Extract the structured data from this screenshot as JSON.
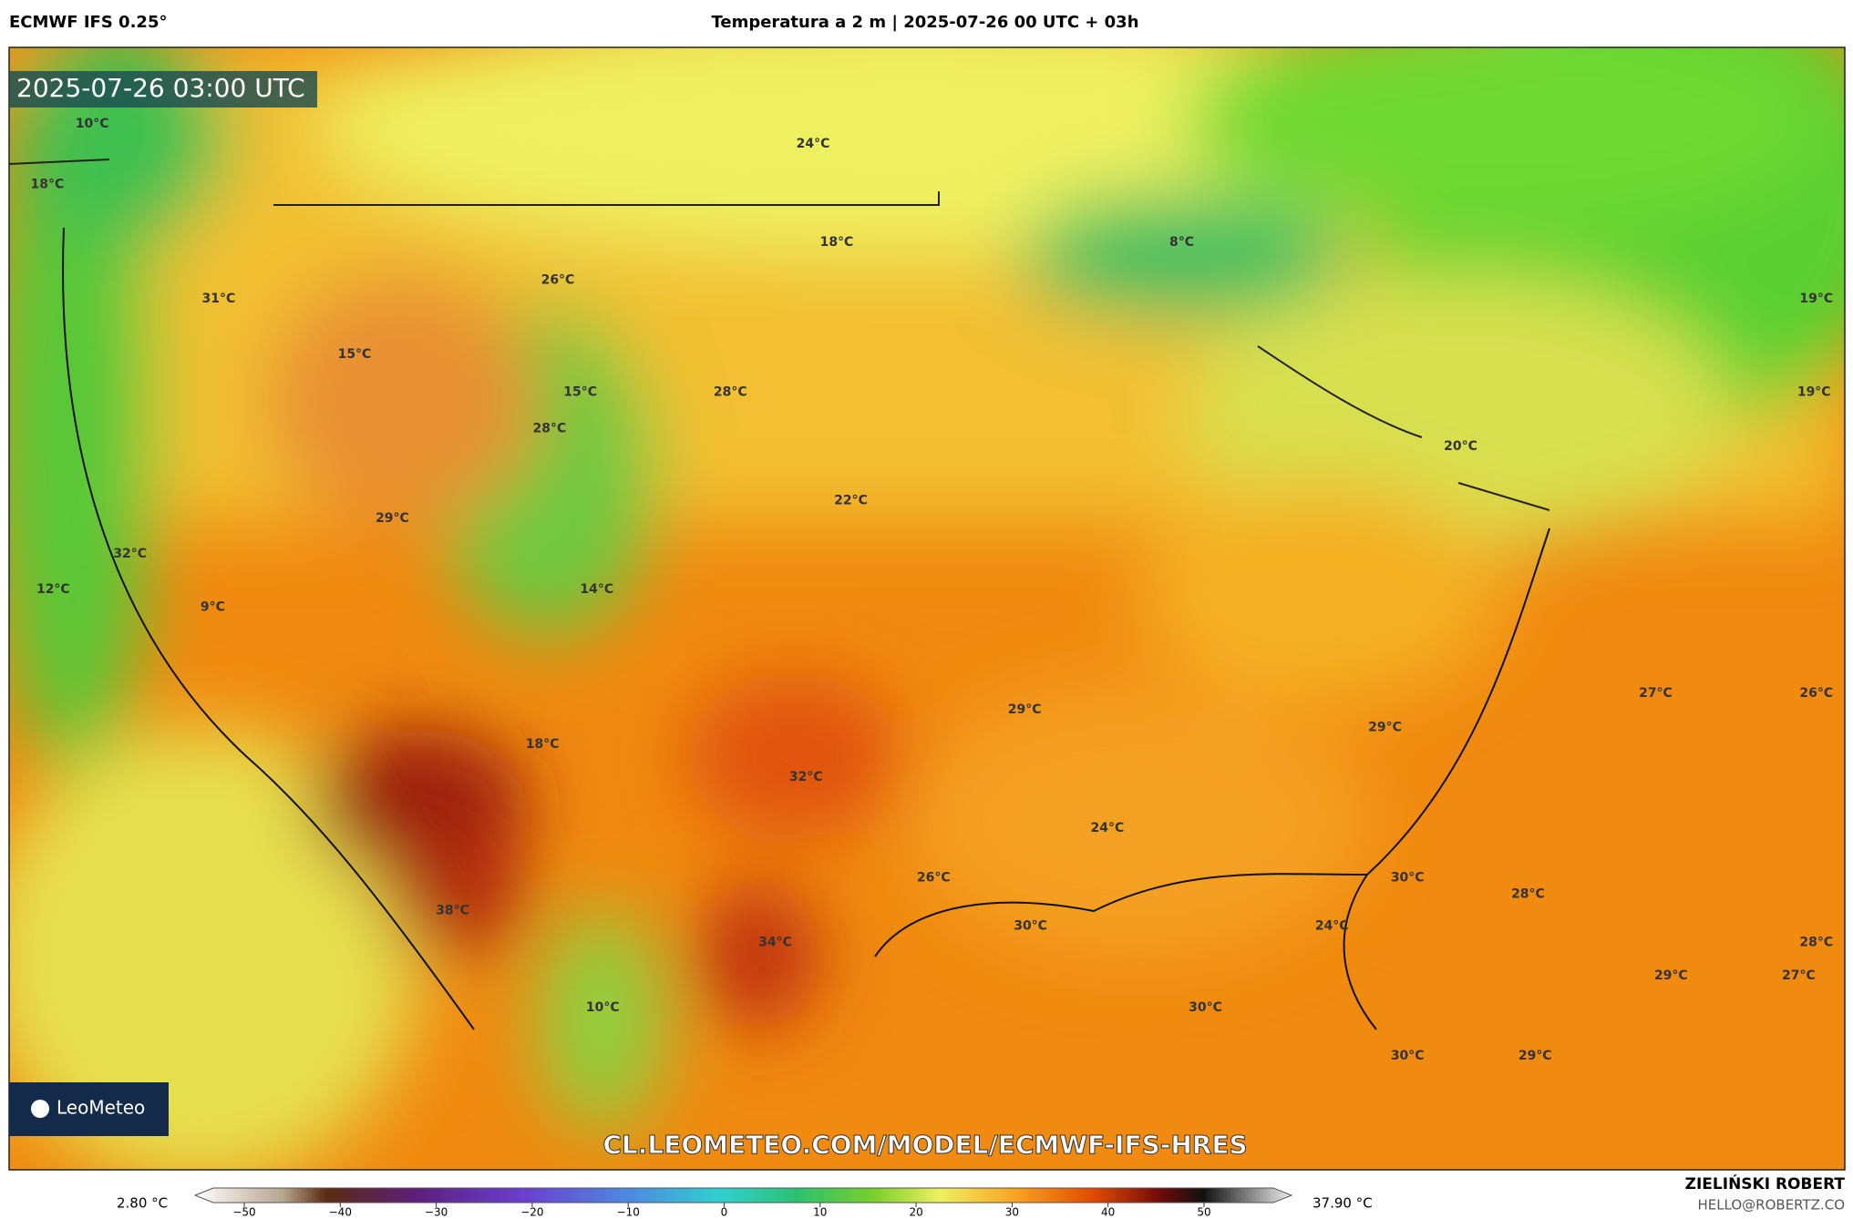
{
  "header": {
    "model": "ECMWF IFS 0.25°",
    "title": "Temperatura a 2 m | 2025-07-26 00 UTC + 03h"
  },
  "map": {
    "timestamp": "2025-07-26 03:00 UTC",
    "url": "CL.LEOMETEO.COM/MODEL/ECMWF-IFS-HRES",
    "logo": "LeoMeteo",
    "labels": [
      "10°C",
      "18°C",
      "31°C",
      "26°C",
      "18°C",
      "24°C",
      "8°C",
      "15°C",
      "15°C",
      "28°C",
      "28°C",
      "29°C",
      "22°C",
      "32°C",
      "12°C",
      "9°C",
      "14°C",
      "20°C",
      "19°C",
      "19°C",
      "29°C",
      "29°C",
      "27°C",
      "26°C",
      "18°C",
      "32°C",
      "24°C",
      "26°C",
      "30°C",
      "28°C",
      "38°C",
      "34°C",
      "30°C",
      "24°C",
      "28°C",
      "29°C",
      "27°C",
      "10°C",
      "30°C",
      "30°C",
      "29°C"
    ]
  },
  "colorbar": {
    "min": "2.80 °C",
    "max": "37.90 °C",
    "ticks": [
      "−50",
      "−40",
      "−30",
      "−20",
      "−10",
      "0",
      "10",
      "20",
      "30",
      "40",
      "50"
    ]
  },
  "footer": {
    "author": "ZIELIŃSKI ROBERT",
    "email": "HELLO@ROBERTZ.CO"
  }
}
